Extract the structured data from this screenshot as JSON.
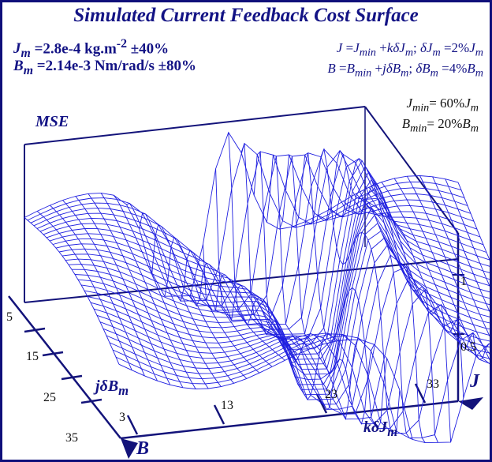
{
  "chart_data": {
    "type": "surface3d",
    "title": "Simulated Current Feedback Cost Surface",
    "z_label": "MSE",
    "x_label": "kδJm",
    "y_label": "jδBm",
    "x_ticks": [
      "3",
      "13",
      "23",
      "33"
    ],
    "y_ticks": [
      "5",
      "15",
      "25",
      "35"
    ],
    "z_ticks": [
      "0.5",
      "1"
    ],
    "x_axis_name": "J",
    "y_axis_name": "B",
    "z_range": [
      0,
      1.5
    ],
    "x_range": [
      0,
      38
    ],
    "y_range": [
      0,
      38
    ],
    "grid": true,
    "mesh_color": "#1f1fe0",
    "text_color": "#131385",
    "surface_model": "valley",
    "annotations": {
      "jm_nominal": "Jm =2.8e-4 kg.m-2 ±40%",
      "bm_nominal": "Bm =2.14e-3 Nm/rad/s ±80%",
      "j_def": "J =Jmin +kδJm; δJm =2%Jm",
      "b_def": "B =Bmin +jδBm; δBm =4%Bm",
      "jmin": "Jmin= 60%Jm",
      "bmin": "Bmin= 20%Bm"
    }
  }
}
